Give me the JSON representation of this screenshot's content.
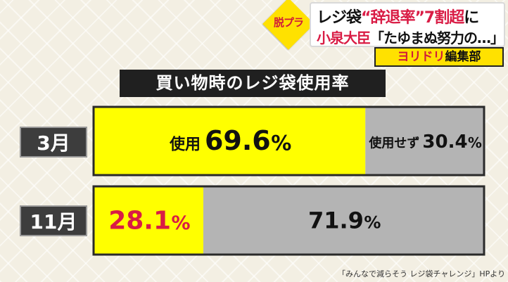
{
  "header": {
    "badge": "脱プラ",
    "headline_line1_a": "レジ袋",
    "headline_line1_b": "“辞退率”7割超",
    "headline_line1_c": "に",
    "headline_line2_a": "小泉大臣",
    "headline_line2_b": "「たゆまぬ努力の…」",
    "corner_a": "ヨリドリ",
    "corner_b": "編集部"
  },
  "colors": {
    "used": "#ffff00",
    "not_used": "#b4b4b4",
    "highlight_red": "#d91c45"
  },
  "chart_data": {
    "type": "bar",
    "orientation": "horizontal-stacked-100",
    "title": "買い物時のレジ袋使用率",
    "categories": [
      "3月",
      "11月"
    ],
    "series": [
      {
        "name": "使用",
        "values": [
          69.6,
          28.1
        ]
      },
      {
        "name": "使用せず",
        "values": [
          30.4,
          71.9
        ]
      }
    ],
    "labels": [
      {
        "used": "使用",
        "used_value": "69.6%",
        "not_used": "使用せず",
        "not_used_value": "30.4%"
      },
      {
        "used": "",
        "used_value": "28.1%",
        "not_used": "",
        "not_used_value": "71.9%"
      }
    ],
    "xlim": [
      0,
      100
    ]
  },
  "source": "「みんなで減らそう レジ袋チャレンジ」HPより"
}
